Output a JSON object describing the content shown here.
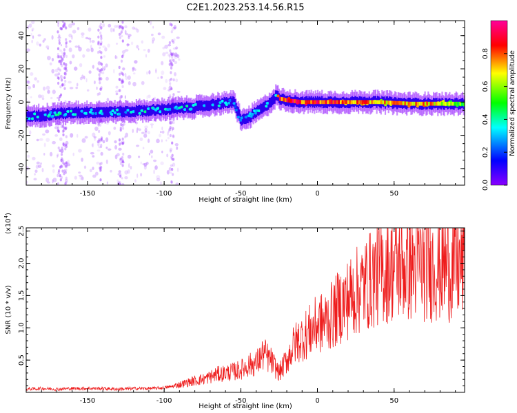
{
  "figure_title": "C2E1.2023.253.14.56.R15",
  "chart_data": [
    {
      "type": "heatmap",
      "title": "",
      "xlabel": "Height of straight line (km)",
      "ylabel": "Frequency (Hz)",
      "xlim": [
        -190,
        96
      ],
      "ylim": [
        -50,
        49
      ],
      "x_ticks": [
        "-150",
        "-100",
        "-50",
        "0",
        "50"
      ],
      "x_tick_values": [
        -150,
        -100,
        -50,
        0,
        50
      ],
      "y_ticks": [
        "-40",
        "-20",
        "0",
        "20",
        "40"
      ],
      "y_tick_values": [
        -40,
        -20,
        0,
        20,
        40
      ],
      "colorbar": {
        "label": "Normalized spectral amplitude",
        "range": [
          0,
          1
        ],
        "ticks": [
          "0.0",
          "0.2",
          "0.4",
          "0.6",
          "0.8"
        ],
        "tick_values": [
          0,
          0.2,
          0.4,
          0.6,
          0.8
        ],
        "colormap": [
          "#8a00ff",
          "#0000ff",
          "#00ffff",
          "#00ff00",
          "#ffff00",
          "#ff0000",
          "#ff0099"
        ]
      },
      "ridge": {
        "x": [
          -190,
          -170,
          -150,
          -130,
          -110,
          -95,
          -80,
          -65,
          -55,
          -50,
          -45,
          -40,
          -35,
          -30,
          -27,
          -25,
          -20,
          -10,
          0,
          20,
          40,
          60,
          75,
          96
        ],
        "frequency": [
          -9,
          -7,
          -6,
          -6,
          -5,
          -4,
          -3,
          -1,
          0,
          -11,
          -9,
          -6,
          -3,
          1,
          4,
          2,
          1,
          0,
          0,
          0,
          0,
          -1,
          -1,
          -1
        ],
        "amplitude": [
          0.35,
          0.4,
          0.35,
          0.35,
          0.4,
          0.35,
          0.4,
          0.4,
          0.3,
          0.25,
          0.3,
          0.35,
          0.4,
          0.35,
          0.3,
          0.9,
          0.95,
          0.9,
          0.95,
          0.85,
          0.8,
          0.8,
          0.8,
          0.55
        ]
      }
    },
    {
      "type": "line",
      "title": "",
      "xlabel": "Height of straight line (km)",
      "ylabel": "SNR (10 * v/v)",
      "y_multiplier": "(x10",
      "y_multiplier_exp": "4",
      "y_multiplier_close": ")",
      "xlim": [
        -190,
        96
      ],
      "ylim": [
        0,
        2.55
      ],
      "x_ticks": [
        "-150",
        "-100",
        "-50",
        "0",
        "50"
      ],
      "x_tick_values": [
        -150,
        -100,
        -50,
        0,
        50
      ],
      "y_ticks": [
        "0.5",
        "1.0",
        "1.5",
        "2.0",
        "2.5"
      ],
      "y_tick_values": [
        0.5,
        1.0,
        1.5,
        2.0,
        2.5
      ],
      "color": "#ee1c1c",
      "series": [
        {
          "x": [
            -190,
            -180,
            -170,
            -160,
            -150,
            -140,
            -130,
            -120,
            -110,
            -100,
            -95,
            -90,
            -85,
            -80,
            -75,
            -70,
            -65,
            -60,
            -55,
            -50,
            -45,
            -40,
            -35,
            -30,
            -25,
            -20,
            -15,
            -10,
            -5,
            0,
            5,
            10,
            15,
            20,
            25,
            30,
            35,
            40,
            45,
            50,
            55,
            60,
            65,
            70,
            75,
            80,
            85,
            90,
            96
          ],
          "values": [
            0.05,
            0.06,
            0.05,
            0.06,
            0.06,
            0.06,
            0.05,
            0.06,
            0.06,
            0.07,
            0.09,
            0.12,
            0.15,
            0.18,
            0.2,
            0.24,
            0.28,
            0.3,
            0.32,
            0.35,
            0.42,
            0.45,
            0.6,
            0.48,
            0.3,
            0.5,
            0.75,
            0.85,
            0.95,
            1.05,
            1.1,
            1.2,
            1.35,
            1.45,
            1.55,
            1.65,
            1.75,
            1.85,
            1.9,
            1.95,
            1.95,
            1.95,
            2.0,
            1.95,
            1.95,
            1.95,
            1.95,
            1.95,
            1.95
          ]
        }
      ]
    }
  ]
}
